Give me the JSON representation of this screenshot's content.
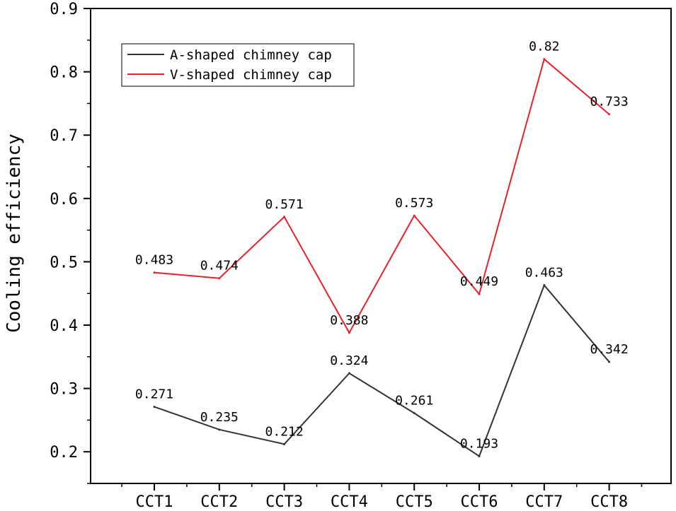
{
  "chart_data": {
    "type": "line",
    "title": "",
    "xlabel": "",
    "ylabel": "Cooling efficiency",
    "ylim": [
      0.15,
      0.9
    ],
    "yticks": [
      "0.2",
      "0.3",
      "0.4",
      "0.5",
      "0.6",
      "0.7",
      "0.8",
      "0.9"
    ],
    "categories": [
      "CCT1",
      "CCT2",
      "CCT3",
      "CCT4",
      "CCT5",
      "CCT6",
      "CCT7",
      "CCT8"
    ],
    "legend_position": "top-left",
    "grid": false,
    "series": [
      {
        "name": "A-shaped chimney cap",
        "color": "#333333",
        "values": [
          0.271,
          0.235,
          0.212,
          0.324,
          0.261,
          0.193,
          0.463,
          0.342
        ],
        "labels": [
          "0.271",
          "0.235",
          "0.212",
          "0.324",
          "0.261",
          "0.193",
          "0.463",
          "0.342"
        ]
      },
      {
        "name": "V-shaped chimney cap",
        "color": "#e8202a",
        "values": [
          0.483,
          0.474,
          0.571,
          0.388,
          0.573,
          0.449,
          0.82,
          0.733
        ],
        "labels": [
          "0.483",
          "0.474",
          "0.571",
          "0.388",
          "0.573",
          "0.449",
          "0.82",
          "0.733"
        ]
      }
    ]
  }
}
